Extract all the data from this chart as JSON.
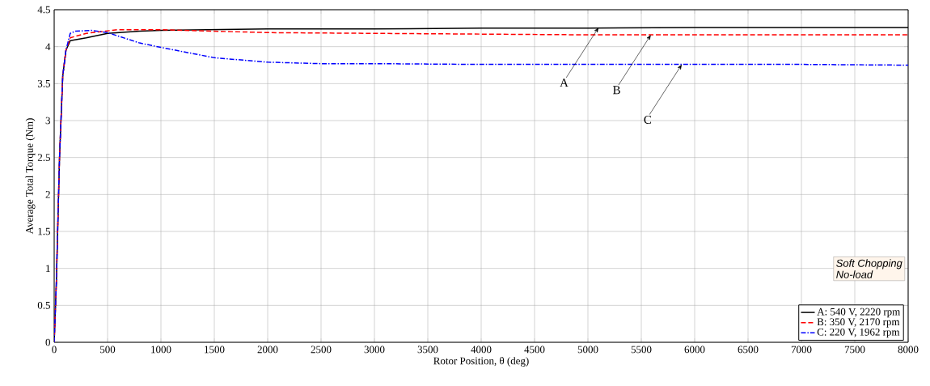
{
  "chart_data": {
    "type": "line",
    "xlabel": "Rotor Position, θ (deg)",
    "ylabel": "Average Total Torque (Nm)",
    "xlim": [
      0,
      8000
    ],
    "xticks": [
      0,
      500,
      1000,
      1500,
      2000,
      2500,
      3000,
      3500,
      4000,
      4500,
      5000,
      5500,
      6000,
      6500,
      7000,
      7500,
      8000
    ],
    "ylim": [
      0,
      4.5
    ],
    "yticks": [
      0,
      0.5,
      1,
      1.5,
      2,
      2.5,
      3,
      3.5,
      4,
      4.5
    ],
    "grid": true,
    "legend": "bottom right",
    "series": [
      {
        "name": "A: 540 V, 2220 rpm",
        "color": "#000000",
        "line_style": "solid",
        "x": [
          0,
          20,
          50,
          80,
          110,
          150,
          300,
          500,
          800,
          1000,
          2000,
          3000,
          4000,
          5000,
          6000,
          7000,
          8000
        ],
        "values": [
          0,
          0.8,
          2.5,
          3.6,
          3.95,
          4.08,
          4.12,
          4.18,
          4.21,
          4.22,
          4.24,
          4.24,
          4.25,
          4.25,
          4.26,
          4.26,
          4.26
        ]
      },
      {
        "name": "B: 350 V, 2170 rpm",
        "color": "#ff0000",
        "line_style": "dashed",
        "x": [
          0,
          20,
          50,
          80,
          110,
          150,
          300,
          600,
          1000,
          1500,
          2000,
          3000,
          4000,
          5000,
          8000
        ],
        "values": [
          0,
          0.8,
          2.5,
          3.6,
          3.95,
          4.12,
          4.18,
          4.23,
          4.23,
          4.21,
          4.19,
          4.18,
          4.17,
          4.16,
          4.16
        ]
      },
      {
        "name": "C: 220 V, 1962 rpm",
        "color": "#0000ff",
        "line_style": "dashdot",
        "x": [
          0,
          20,
          50,
          80,
          110,
          150,
          200,
          350,
          500,
          800,
          1000,
          1500,
          2000,
          2500,
          3000,
          4000,
          5000,
          6000,
          7000,
          8000
        ],
        "values": [
          0,
          0.8,
          2.5,
          3.6,
          3.95,
          4.18,
          4.21,
          4.22,
          4.19,
          4.05,
          3.99,
          3.85,
          3.79,
          3.77,
          3.77,
          3.76,
          3.76,
          3.76,
          3.76,
          3.75
        ]
      }
    ],
    "annotations": [
      {
        "text": "A",
        "x": 5100,
        "y": 4.26
      },
      {
        "text": "B",
        "x": 5590,
        "y": 4.16
      },
      {
        "text": "C",
        "x": 5880,
        "y": 3.76
      },
      "Soft Chopping",
      "No-load"
    ]
  }
}
